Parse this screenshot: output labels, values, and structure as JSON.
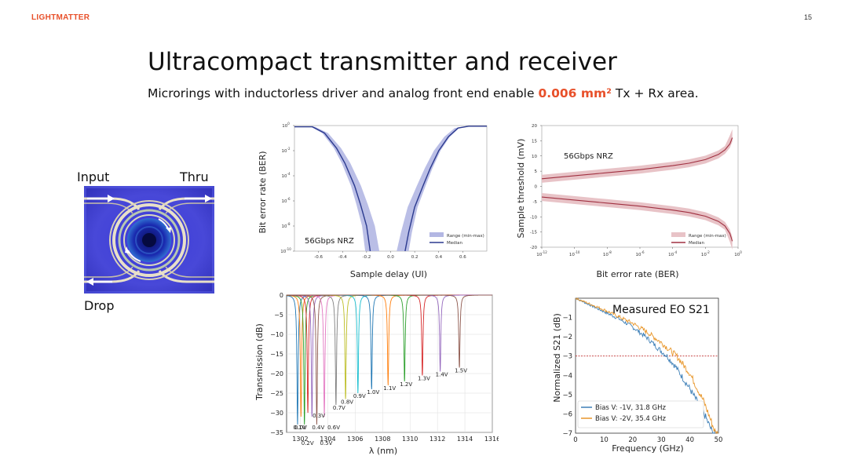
{
  "header": {
    "logo": "LIGHTMATTER",
    "page_number": "15"
  },
  "title": "Ultracompact transmitter and receiver",
  "subtitle": {
    "before": "Microrings with inductorless driver and analog front end enable ",
    "highlight": "0.006 mm²",
    "after": " Tx + Rx area."
  },
  "colors": {
    "accent": "#e8502a",
    "blue_series": "#2b3a8f",
    "blue_fill": "#b3b7e3",
    "red_series": "#a03040",
    "red_fill": "#e8c3c7"
  },
  "ring_image": {
    "input_label": "Input",
    "thru_label": "Thru",
    "drop_label": "Drop"
  },
  "chart_data": [
    {
      "type": "line",
      "ylabel": "Bit error rate (BER)",
      "xlabel": "Sample delay (UI)",
      "annotation": "56Gbps NRZ",
      "y_scale": "log",
      "xlim": [
        -0.8,
        0.8
      ],
      "ylim_exp": [
        -10,
        0
      ],
      "x_ticks": [
        "-0.6",
        "-0.4",
        "-0.2",
        "0.0",
        "0.2",
        "0.4",
        "0.6"
      ],
      "x_tick_values": [
        -0.6,
        -0.4,
        -0.2,
        0,
        0.2,
        0.4,
        0.6
      ],
      "y_tick_exponents": [
        0,
        -2,
        -4,
        -6,
        -8,
        -10
      ],
      "legend": {
        "position": "lower-right",
        "range": "Range (min-max)",
        "median": "Median"
      },
      "left_median": {
        "x": [
          -0.8,
          -0.65,
          -0.55,
          -0.45,
          -0.38,
          -0.3,
          -0.25,
          -0.2,
          -0.17
        ],
        "y_exp": [
          -0.1,
          -0.1,
          -0.6,
          -1.8,
          -3.0,
          -4.8,
          -6.3,
          -8.0,
          -10
        ]
      },
      "right_median": {
        "x": [
          0.12,
          0.15,
          0.2,
          0.27,
          0.33,
          0.4,
          0.48,
          0.56,
          0.65,
          0.8
        ],
        "y_exp": [
          -10,
          -8.5,
          -6.5,
          -4.8,
          -3.4,
          -2.0,
          -0.9,
          -0.2,
          -0.05,
          -0.05
        ]
      }
    },
    {
      "type": "line",
      "ylabel": "Sample threshold (mV)",
      "xlabel": "Bit error rate (BER)",
      "annotation": "56Gbps NRZ",
      "x_scale": "log",
      "xlim_exp": [
        -12,
        0
      ],
      "ylim": [
        -20,
        20
      ],
      "x_tick_exponents": [
        -12,
        -10,
        -8,
        -6,
        -4,
        -2,
        0
      ],
      "y_ticks": [
        20,
        15,
        10,
        5,
        0,
        -5,
        -10,
        -15,
        -20
      ],
      "legend": {
        "position": "lower-right",
        "range": "Range (min-max)",
        "median": "Median"
      },
      "upper_median": {
        "x_exp": [
          -12,
          -10,
          -8,
          -6,
          -4,
          -3,
          -2,
          -1.2,
          -0.8,
          -0.5,
          -0.35
        ],
        "y": [
          2.5,
          3.5,
          4.5,
          5.5,
          6.8,
          7.6,
          8.8,
          10.5,
          12,
          14,
          16
        ]
      },
      "lower_median": {
        "x_exp": [
          -12,
          -10,
          -8,
          -6,
          -4,
          -3,
          -2,
          -1.2,
          -0.8,
          -0.5,
          -0.35
        ],
        "y": [
          -3.5,
          -4.5,
          -5.5,
          -6.5,
          -7.8,
          -8.6,
          -9.8,
          -11.5,
          -13,
          -15.5,
          -18
        ]
      }
    },
    {
      "type": "line",
      "ylabel": "Transmission (dB)",
      "xlabel": "λ (nm)",
      "xlim": [
        1301,
        1316
      ],
      "ylim": [
        -35,
        0
      ],
      "x_ticks": [
        1302,
        1304,
        1306,
        1308,
        1310,
        1312,
        1314,
        1316
      ],
      "y_ticks": [
        0,
        -5,
        -10,
        -15,
        -20,
        -25,
        -30,
        -35
      ],
      "grid": true,
      "series": [
        {
          "name": "0.0V",
          "center": 1301.8,
          "depth": -33,
          "color": "#1f77b4"
        },
        {
          "name": "0.1V",
          "center": 1302.05,
          "depth": -31,
          "color": "#ff7f0e"
        },
        {
          "name": "0.2V",
          "center": 1302.3,
          "depth": -33,
          "color": "#2ca02c"
        },
        {
          "name": "0.3V",
          "center": 1302.55,
          "depth": -30,
          "color": "#d62728"
        },
        {
          "name": "0.4V",
          "center": 1302.85,
          "depth": -31,
          "color": "#9467bd"
        },
        {
          "name": "0.5V",
          "center": 1303.2,
          "depth": -33,
          "color": "#8c564b"
        },
        {
          "name": "0.6V",
          "center": 1303.75,
          "depth": -31,
          "color": "#e377c2"
        },
        {
          "name": "0.7V",
          "center": 1304.6,
          "depth": -28,
          "color": "#7f7f7f"
        },
        {
          "name": "0.8V",
          "center": 1305.3,
          "depth": -26.5,
          "color": "#bcbd22"
        },
        {
          "name": "0.9V",
          "center": 1306.2,
          "depth": -25,
          "color": "#17becf"
        },
        {
          "name": "1.0V",
          "center": 1307.2,
          "depth": -24,
          "color": "#1f77b4"
        },
        {
          "name": "1.1V",
          "center": 1308.4,
          "depth": -23,
          "color": "#ff7f0e"
        },
        {
          "name": "1.2V",
          "center": 1309.6,
          "depth": -22,
          "color": "#2ca02c"
        },
        {
          "name": "1.3V",
          "center": 1310.9,
          "depth": -20.5,
          "color": "#d62728"
        },
        {
          "name": "1.4V",
          "center": 1312.2,
          "depth": -19.5,
          "color": "#9467bd"
        },
        {
          "name": "1.5V",
          "center": 1313.6,
          "depth": -18.5,
          "color": "#8c564b"
        }
      ]
    },
    {
      "type": "line",
      "title": "Measured EO S21",
      "ylabel": "Normalized S21 (dB)",
      "xlabel": "Frequency (GHz)",
      "xlim": [
        0,
        50
      ],
      "ylim": [
        -7,
        0
      ],
      "x_ticks": [
        0,
        10,
        20,
        30,
        40,
        50
      ],
      "y_ticks": [
        -1,
        -2,
        -3,
        -4,
        -5,
        -6,
        -7
      ],
      "reference_line": -3,
      "legend": {
        "position": "lower-left"
      },
      "series": [
        {
          "name": "Bias V: -1V, 31.8 GHz",
          "color": "#3d7fb7",
          "x": [
            0,
            5,
            10,
            15,
            20,
            25,
            30,
            32,
            35,
            40,
            45,
            48
          ],
          "y": [
            0,
            -0.35,
            -0.7,
            -1.05,
            -1.5,
            -2.05,
            -2.75,
            -3.0,
            -3.55,
            -4.7,
            -6.0,
            -7.0
          ]
        },
        {
          "name": "Bias V: -2V, 35.4 GHz",
          "color": "#e8962a",
          "x": [
            0,
            5,
            10,
            15,
            20,
            25,
            30,
            35.4,
            40,
            45,
            49
          ],
          "y": [
            0,
            -0.3,
            -0.6,
            -0.95,
            -1.3,
            -1.75,
            -2.3,
            -3.0,
            -3.9,
            -5.4,
            -7.0
          ]
        }
      ]
    }
  ]
}
